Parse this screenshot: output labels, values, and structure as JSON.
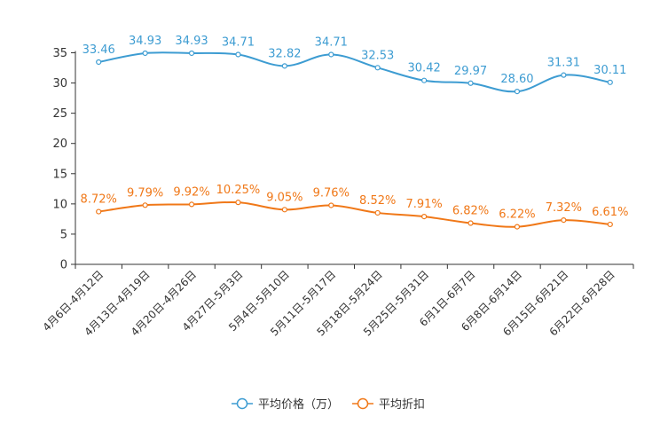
{
  "chart_data": {
    "type": "line",
    "title": "",
    "xlabel": "",
    "ylabel": "",
    "ylim": [
      0,
      35
    ],
    "yticks": [
      0,
      5,
      10,
      15,
      20,
      25,
      30,
      35
    ],
    "grid": false,
    "legend_position": "bottom-center",
    "categories": [
      "4月6日-4月12日",
      "4月13日-4月19日",
      "4月20日-4月26日",
      "4月27日-5月3日",
      "5月4日-5月10日",
      "5月11日-5月17日",
      "5月18日-5月24日",
      "5月25日-5月31日",
      "6月1日-6月7日",
      "6月8日-6月14日",
      "6月15日-6月21日",
      "6月22日-6月28日"
    ],
    "series": [
      {
        "name": "平均价格（万）",
        "color": "#3d9cd2",
        "values": [
          33.46,
          34.93,
          34.93,
          34.71,
          32.82,
          34.71,
          32.53,
          30.42,
          29.97,
          28.6,
          31.31,
          30.11
        ],
        "labels": [
          "33.46",
          "34.93",
          "34.93",
          "34.71",
          "32.82",
          "34.71",
          "32.53",
          "30.42",
          "29.97",
          "28.60",
          "31.31",
          "30.11"
        ]
      },
      {
        "name": "平均折扣",
        "color": "#f07818",
        "values": [
          8.72,
          9.79,
          9.92,
          10.25,
          9.05,
          9.76,
          8.52,
          7.91,
          6.82,
          6.22,
          7.32,
          6.61
        ],
        "labels": [
          "8.72%",
          "9.79%",
          "9.92%",
          "10.25%",
          "9.05%",
          "9.76%",
          "8.52%",
          "7.91%",
          "6.82%",
          "6.22%",
          "7.32%",
          "6.61%"
        ]
      }
    ]
  }
}
